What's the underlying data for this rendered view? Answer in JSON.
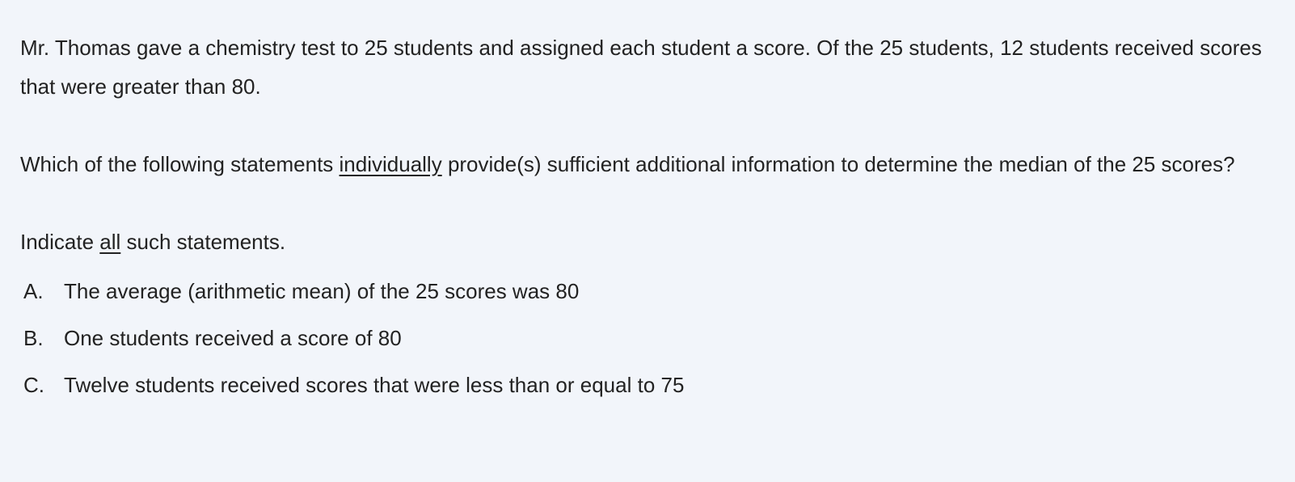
{
  "question": {
    "stem": "Mr. Thomas gave a chemistry test to 25 students and assigned each student a score. Of the 25 students, 12 students received scores that were greater than 80.",
    "prompt_before": "Which of the following statements ",
    "prompt_emphasis": "individually",
    "prompt_after": " provide(s) sufficient additional information to determine the median of the 25 scores?",
    "instruction_before": "Indicate ",
    "instruction_emphasis": "all",
    "instruction_after": " such statements.",
    "choices": [
      {
        "letter": "A.",
        "text": "The average (arithmetic mean) of the 25 scores was 80"
      },
      {
        "letter": "B.",
        "text": "One students received a score of 80"
      },
      {
        "letter": "C.",
        "text": "Twelve students received scores that were less than or equal to 75"
      }
    ]
  }
}
